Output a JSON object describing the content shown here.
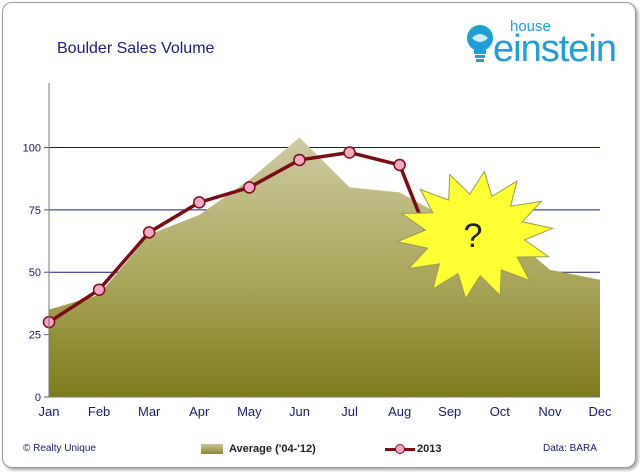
{
  "chart_data": {
    "type": "area",
    "title": "Boulder Sales Volume",
    "categories": [
      "Jan",
      "Feb",
      "Mar",
      "Apr",
      "May",
      "Jun",
      "Jul",
      "Aug",
      "Sep",
      "Oct",
      "Nov",
      "Dec"
    ],
    "yticks": [
      0,
      25,
      50,
      75,
      100
    ],
    "ylim": [
      0,
      105
    ],
    "grid": true,
    "legend_position": "bottom",
    "series": [
      {
        "name": "Average ('04-'12)",
        "type": "area",
        "values": [
          35,
          41,
          65,
          73,
          87,
          104,
          84,
          82,
          71,
          68,
          51,
          47
        ]
      },
      {
        "name": "2013",
        "type": "line",
        "values": [
          30,
          43,
          66,
          78,
          84,
          95,
          98,
          93,
          null,
          null,
          null,
          null
        ]
      }
    ],
    "annotation": {
      "text": "?"
    }
  },
  "footer": {
    "copyright": "© Realty Unique",
    "source": "Data: BARA"
  },
  "logo": {
    "small": "house",
    "main": "einstein"
  },
  "colors": {
    "line": "#7a0c16",
    "marker": "#f4a7c4",
    "grid": "#1a1a6e",
    "burst": "#ffff33",
    "logo": "#1f9fd6"
  }
}
